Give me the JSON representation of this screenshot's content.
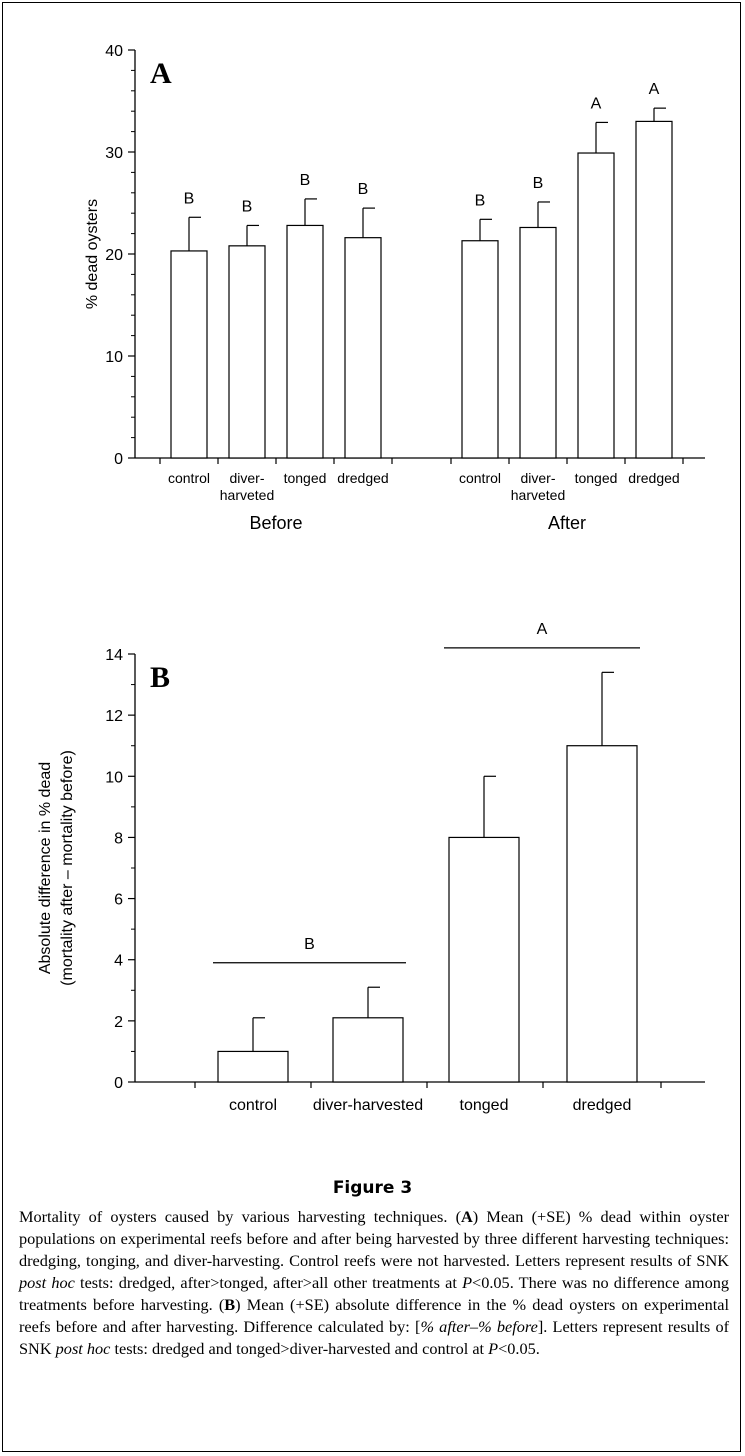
{
  "chart_data": [
    {
      "type": "bar",
      "panel": "A",
      "ylabel": "% dead oysters",
      "ylim": [
        0,
        40
      ],
      "yticks": [
        0,
        10,
        20,
        30,
        40
      ],
      "groups": [
        {
          "label": "Before",
          "categories": [
            "control",
            "diver-\nharveted",
            "tonged",
            "dredged"
          ],
          "values": [
            20.3,
            20.8,
            22.8,
            21.6
          ],
          "errors": [
            3.3,
            2.0,
            2.6,
            2.9
          ],
          "letters": [
            "B",
            "B",
            "B",
            "B"
          ]
        },
        {
          "label": "After",
          "categories": [
            "control",
            "diver-\nharveted",
            "tonged",
            "dredged"
          ],
          "values": [
            21.3,
            22.6,
            29.9,
            33.0
          ],
          "errors": [
            2.1,
            2.5,
            3.0,
            1.3
          ],
          "letters": [
            "B",
            "B",
            "A",
            "A"
          ]
        }
      ]
    },
    {
      "type": "bar",
      "panel": "B",
      "ylabel_line1": "Absolute difference in % dead",
      "ylabel_line2": "(mortality after – mortality before)",
      "ylim": [
        0,
        14
      ],
      "yticks": [
        0,
        2,
        4,
        6,
        8,
        10,
        12,
        14
      ],
      "categories": [
        "control",
        "diver-harvested",
        "tonged",
        "dredged"
      ],
      "values": [
        1.0,
        2.1,
        8.0,
        11.0
      ],
      "errors": [
        1.1,
        1.0,
        2.0,
        2.4
      ],
      "groupings": [
        {
          "letter": "B",
          "level": 3.9,
          "from": 0,
          "to": 1
        },
        {
          "letter": "A",
          "level": 14.2,
          "from": 2,
          "to": 3
        }
      ]
    }
  ],
  "figure": {
    "title": "Figure 3",
    "caption_html": "Mortality of oysters caused by various harvesting techniques. (<b>A</b>) Mean (+SE) % dead within oyster populations on experimental reefs before and after being harvested by three different harvesting techniques: dredging, tonging, and diver-harvesting. Control reefs were not harvested. Letters represent results of SNK <i>post hoc</i> tests: dredged, after&gt;tonged, after&gt;all other treatments at <i>P</i>&lt;0.05. There was no difference among treatments before harvesting. (<b>B</b>) Mean (+SE) absolute difference in the % dead oysters on experimental reefs before and after harvesting. Difference calculated by: [<i>% after–% before</i>]. Letters represent results of SNK <i>post hoc</i> tests: dredged and tonged&gt;diver-harvested and control at <i>P</i>&lt;0.05."
  }
}
